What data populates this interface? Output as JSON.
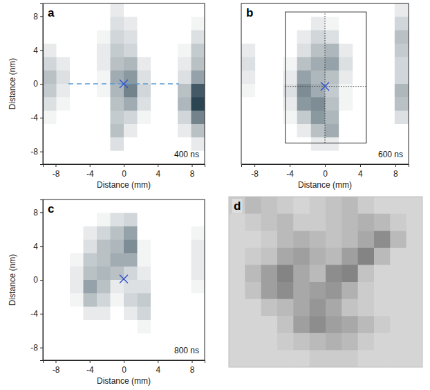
{
  "chart_data": [
    {
      "type": "heatmap",
      "title": "a",
      "annotations": [
        "400 ns"
      ],
      "x_label": "Distance (mm)",
      "y_label": "Distance (nm)",
      "xlim": [
        -9.5,
        9.5
      ],
      "ylim": [
        -9.5,
        9.5
      ],
      "xticks": [
        -8,
        -4,
        0,
        4,
        8
      ],
      "yticks": [
        -8,
        -4,
        0,
        4,
        8
      ],
      "color": "#14303f",
      "color_range": [
        0,
        1
      ],
      "cells": [
        [
          0,
          0,
          0,
          0,
          0,
          0.1,
          0,
          0,
          0,
          0,
          0,
          0
        ],
        [
          0,
          0,
          0,
          0,
          0,
          0.15,
          0.1,
          0,
          0,
          0,
          0,
          0.05
        ],
        [
          0,
          0,
          0,
          0,
          0.05,
          0.2,
          0.15,
          0,
          0,
          0,
          0,
          0.15
        ],
        [
          0.1,
          0,
          0,
          0,
          0.1,
          0.25,
          0.2,
          0,
          0,
          0,
          0.05,
          0.25
        ],
        [
          0.2,
          0.1,
          0,
          0,
          0.1,
          0.3,
          0.35,
          0.1,
          0,
          0,
          0.1,
          0.3
        ],
        [
          0.3,
          0.15,
          0,
          0,
          0.05,
          0.4,
          0.5,
          0.15,
          0,
          0,
          0.15,
          0.45
        ],
        [
          0.25,
          0.1,
          0,
          0,
          0.05,
          0.35,
          0.6,
          0.2,
          0,
          0,
          0.3,
          0.8
        ],
        [
          0.15,
          0.05,
          0,
          0,
          0,
          0.3,
          0.4,
          0.15,
          0,
          0,
          0.35,
          0.9
        ],
        [
          0.05,
          0,
          0,
          0,
          0,
          0.25,
          0.2,
          0.05,
          0,
          0,
          0.2,
          0.6
        ],
        [
          0,
          0,
          0,
          0,
          0,
          0.3,
          0.1,
          0,
          0,
          0,
          0.1,
          0.3
        ],
        [
          0,
          0,
          0,
          0,
          0,
          0.15,
          0,
          0,
          0,
          0,
          0,
          0.1
        ],
        [
          0,
          0,
          0,
          0,
          0,
          0,
          0,
          0,
          0,
          0,
          0,
          0
        ]
      ],
      "marker": "x",
      "markers": [
        {
          "x": 0,
          "y": 0
        }
      ],
      "lines": [
        {
          "x": [
            -6.5,
            6.5
          ],
          "y": [
            0,
            0
          ],
          "line_style": "dashed"
        }
      ]
    },
    {
      "type": "heatmap",
      "title": "b",
      "annotations": [
        "600 ns"
      ],
      "x_label": "Distance (mm)",
      "tick_labels": "x",
      "xlim": [
        -9.5,
        9.5
      ],
      "ylim": [
        -9.5,
        9.5
      ],
      "xticks": [
        -8,
        -4,
        0,
        4,
        8
      ],
      "color": "#14303f",
      "color_range": [
        0,
        1
      ],
      "cells": [
        [
          0,
          0,
          0,
          0,
          0,
          0,
          0,
          0,
          0,
          0,
          0,
          0.1
        ],
        [
          0,
          0,
          0,
          0,
          0,
          0.1,
          0.05,
          0,
          0,
          0,
          0,
          0.2
        ],
        [
          0,
          0,
          0,
          0,
          0.1,
          0.2,
          0.15,
          0,
          0,
          0,
          0,
          0.3
        ],
        [
          0.1,
          0,
          0,
          0,
          0.15,
          0.3,
          0.35,
          0.1,
          0,
          0,
          0,
          0.25
        ],
        [
          0.15,
          0,
          0,
          0.05,
          0.3,
          0.4,
          0.45,
          0.15,
          0,
          0,
          0,
          0.2
        ],
        [
          0.1,
          0,
          0,
          0.1,
          0.45,
          0.35,
          0.3,
          0.1,
          0,
          0,
          0,
          0.2
        ],
        [
          0.05,
          0,
          0,
          0.15,
          0.55,
          0.4,
          0.25,
          0.05,
          0,
          0,
          0,
          0.35
        ],
        [
          0,
          0,
          0,
          0.1,
          0.5,
          0.55,
          0.3,
          0.05,
          0,
          0,
          0,
          0.3
        ],
        [
          0,
          0,
          0,
          0.05,
          0.25,
          0.5,
          0.35,
          0,
          0,
          0,
          0,
          0.15
        ],
        [
          0,
          0,
          0,
          0,
          0.1,
          0.3,
          0.4,
          0,
          0,
          0,
          0,
          0
        ],
        [
          0,
          0,
          0,
          0,
          0,
          0.1,
          0.1,
          0,
          0,
          0,
          0,
          0
        ],
        [
          0,
          0,
          0,
          0,
          0,
          0,
          0,
          0,
          0,
          0,
          0,
          0
        ]
      ],
      "marker": "x",
      "markers": [
        {
          "x": 0,
          "y": -0.3
        }
      ],
      "box": {
        "x": [
          -4.5,
          4.7
        ],
        "y": [
          -7,
          8.5
        ]
      },
      "lines": [
        {
          "x": [
            0,
            0
          ],
          "y": [
            -7,
            8.5
          ],
          "line_style": "dotted"
        },
        {
          "x": [
            -4.5,
            4.7
          ],
          "y": [
            -0.3,
            -0.3
          ],
          "line_style": "dotted"
        }
      ]
    },
    {
      "type": "heatmap",
      "title": "c",
      "annotations": [
        "800 ns"
      ],
      "x_label": "Distance (mm)",
      "y_label": "Distance (nm)",
      "xlim": [
        -9.5,
        9.5
      ],
      "ylim": [
        -9.5,
        9.5
      ],
      "xticks": [
        -8,
        -4,
        0,
        4,
        8
      ],
      "yticks": [
        -8,
        -4,
        0,
        4,
        8
      ],
      "color": "#14303f",
      "color_range": [
        0,
        1
      ],
      "cells": [
        [
          0,
          0,
          0,
          0,
          0,
          0,
          0,
          0,
          0,
          0,
          0,
          0
        ],
        [
          0,
          0,
          0,
          0,
          0.05,
          0.15,
          0.2,
          0,
          0,
          0,
          0,
          0
        ],
        [
          0,
          0,
          0,
          0.1,
          0.2,
          0.3,
          0.45,
          0,
          0,
          0,
          0,
          0.05
        ],
        [
          0,
          0,
          0,
          0.15,
          0.3,
          0.35,
          0.55,
          0.05,
          0,
          0,
          0,
          0.1
        ],
        [
          0,
          0,
          0.05,
          0.25,
          0.3,
          0.4,
          0.4,
          0.05,
          0,
          0,
          0,
          0.1
        ],
        [
          0,
          0,
          0.1,
          0.3,
          0.35,
          0.3,
          0.2,
          0.1,
          0,
          0,
          0,
          0.1
        ],
        [
          0,
          0,
          0.1,
          0.45,
          0.3,
          0.1,
          0.15,
          0.15,
          0,
          0,
          0,
          0.05
        ],
        [
          0,
          0,
          0.05,
          0.3,
          0.2,
          0.05,
          0.2,
          0.25,
          0,
          0,
          0,
          0
        ],
        [
          0,
          0,
          0,
          0.1,
          0.1,
          0,
          0.1,
          0.2,
          0,
          0,
          0,
          0
        ],
        [
          0,
          0,
          0,
          0,
          0,
          0,
          0,
          0.05,
          0,
          0,
          0,
          0
        ],
        [
          0,
          0,
          0,
          0,
          0,
          0,
          0,
          0,
          0,
          0,
          0,
          0
        ],
        [
          0,
          0,
          0,
          0,
          0,
          0,
          0,
          0,
          0,
          0,
          0,
          0
        ]
      ],
      "marker": "x",
      "markers": [
        {
          "x": 0,
          "y": 0.1
        }
      ]
    },
    {
      "type": "image",
      "title": "d",
      "tick_labels": false,
      "color": "#2a2a2a",
      "color_range": [
        0,
        1
      ],
      "cells": [
        [
          0.1,
          0.2,
          0.15,
          0.1,
          0.05,
          0.1,
          0.15,
          0.2,
          0.1,
          0.05,
          0.05,
          0.05
        ],
        [
          0.05,
          0.1,
          0.15,
          0.2,
          0.1,
          0.1,
          0.15,
          0.2,
          0.25,
          0.2,
          0.1,
          0.05
        ],
        [
          0.05,
          0.05,
          0.1,
          0.2,
          0.25,
          0.2,
          0.15,
          0.2,
          0.3,
          0.45,
          0.2,
          0.05
        ],
        [
          0.05,
          0.1,
          0.15,
          0.3,
          0.35,
          0.25,
          0.2,
          0.35,
          0.5,
          0.2,
          0.05,
          0.05
        ],
        [
          0.05,
          0.2,
          0.35,
          0.5,
          0.3,
          0.2,
          0.45,
          0.5,
          0.15,
          0.05,
          0.05,
          0.05
        ],
        [
          0.05,
          0.15,
          0.35,
          0.45,
          0.3,
          0.35,
          0.4,
          0.25,
          0.1,
          0.05,
          0.05,
          0.05
        ],
        [
          0.05,
          0.05,
          0.15,
          0.2,
          0.3,
          0.4,
          0.3,
          0.15,
          0.1,
          0.05,
          0.05,
          0.05
        ],
        [
          0.05,
          0.05,
          0.05,
          0.15,
          0.35,
          0.45,
          0.35,
          0.3,
          0.2,
          0.1,
          0.05,
          0.05
        ],
        [
          0.05,
          0.05,
          0.05,
          0.1,
          0.15,
          0.2,
          0.25,
          0.2,
          0.1,
          0.05,
          0.05,
          0.05
        ],
        [
          0.05,
          0.05,
          0.05,
          0.05,
          0.05,
          0.1,
          0.1,
          0.1,
          0.05,
          0.05,
          0.05,
          0.05
        ]
      ]
    }
  ]
}
